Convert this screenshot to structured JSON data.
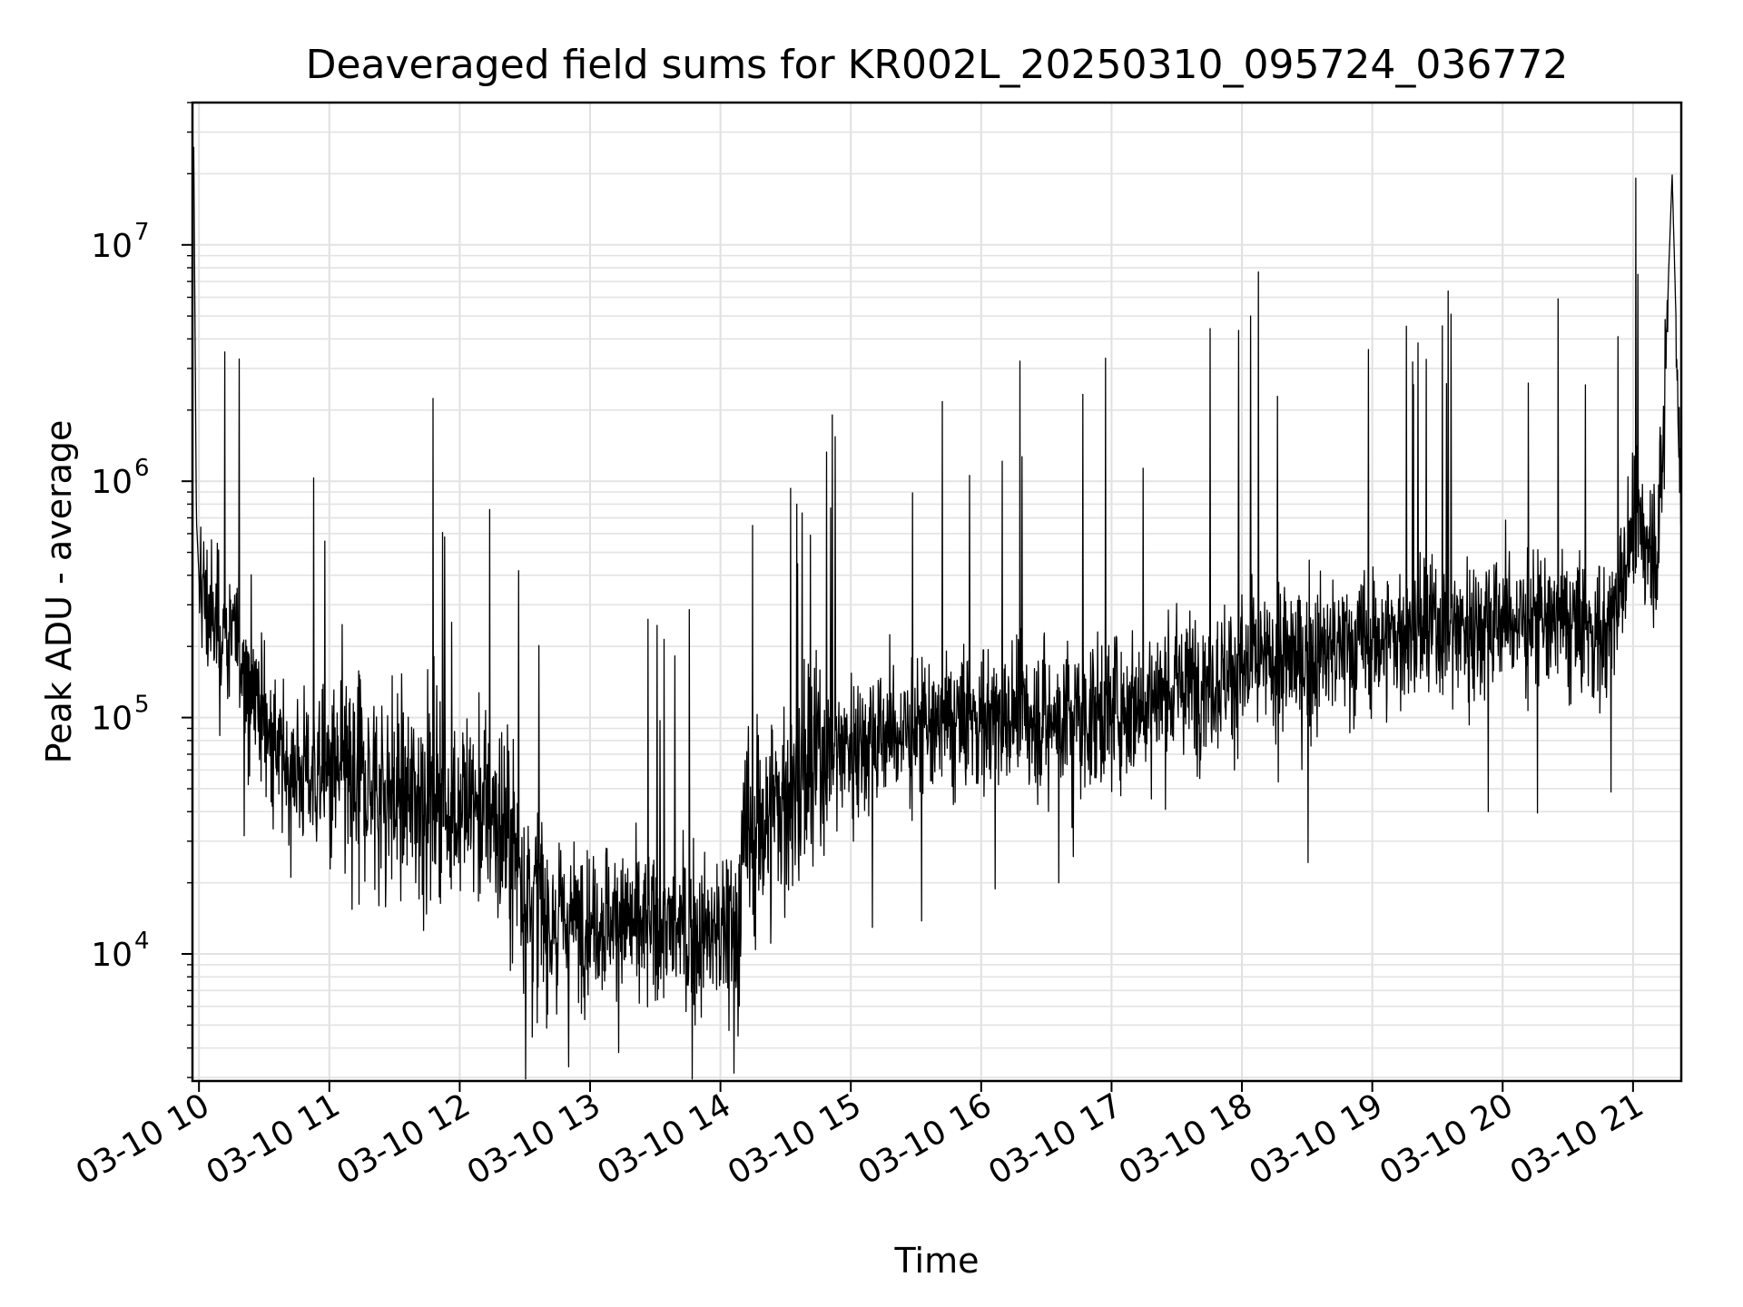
{
  "chart_data": {
    "type": "line",
    "title": "Deaveraged field sums for KR002L_20250310_095724_036772",
    "xlabel": "Time",
    "ylabel": "Peak ADU - average",
    "yscale": "log",
    "ylim": [
      2900,
      40000000
    ],
    "xlim": [
      "2025-03-10 09:57",
      "2025-03-10 21:22"
    ],
    "grid": true,
    "line_color": "#000000",
    "x_ticks": [
      "03-10 10",
      "03-10 11",
      "03-10 12",
      "03-10 13",
      "03-10 14",
      "03-10 15",
      "03-10 16",
      "03-10 17",
      "03-10 18",
      "03-10 19",
      "03-10 20",
      "03-10 21"
    ],
    "y_ticks": [
      {
        "base": "10",
        "exp": "4",
        "value": 10000
      },
      {
        "base": "10",
        "exp": "5",
        "value": 100000
      },
      {
        "base": "10",
        "exp": "6",
        "value": 1000000
      },
      {
        "base": "10",
        "exp": "7",
        "value": 10000000
      }
    ],
    "series": [
      {
        "values_note_x": "x values in hours of 2025-03-10",
        "x": [
          9.96,
          9.98,
          10.0,
          10.05,
          10.1,
          10.2,
          10.3,
          10.4,
          10.5,
          10.6,
          10.7,
          10.8,
          10.9,
          11.0,
          11.2,
          11.4,
          11.6,
          11.8,
          11.9,
          12.0,
          12.2,
          12.4,
          12.5,
          12.6,
          12.8,
          13.0,
          13.2,
          13.4,
          13.6,
          13.8,
          14.0,
          14.1,
          14.2,
          14.4,
          14.6,
          14.8,
          15.0,
          15.3,
          15.6,
          16.0,
          16.4,
          16.8,
          17.0,
          17.3,
          17.6,
          18.0,
          18.5,
          19.0,
          19.5,
          20.0,
          20.5,
          20.8,
          21.0,
          21.2,
          21.3,
          21.37
        ],
        "y": [
          26000000,
          700000,
          400000,
          300000,
          250000,
          220000,
          200000,
          150000,
          100000,
          70000,
          60000,
          60000,
          55000,
          55000,
          55000,
          50000,
          45000,
          50000,
          40000,
          45000,
          40000,
          30000,
          20000,
          15000,
          14000,
          14000,
          14000,
          13000,
          13000,
          12000,
          12000,
          11000,
          30000,
          40000,
          50000,
          70000,
          80000,
          85000,
          90000,
          100000,
          100000,
          100000,
          110000,
          120000,
          140000,
          160000,
          180000,
          210000,
          240000,
          260000,
          250000,
          220000,
          600000,
          550000,
          20000000,
          700000
        ]
      }
    ]
  }
}
